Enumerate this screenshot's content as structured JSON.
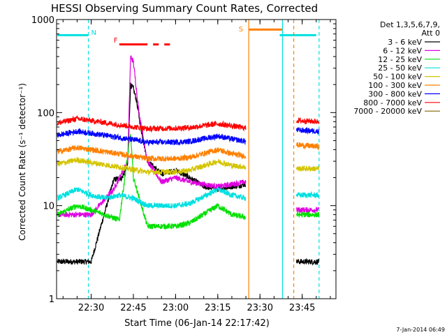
{
  "chart_data": {
    "type": "line",
    "title": "HESSI Observing Summary Count Rates, Corrected",
    "xlabel": "Start Time (06-Jan-14 22:17:42)",
    "ylabel": "Corrected Count Rate (s⁻¹ detector⁻¹)",
    "y_scale": "log",
    "ylim": [
      1,
      1000
    ],
    "xlim": [
      "22:17:42",
      "23:57:00"
    ],
    "x_ticks": [
      "22:30",
      "22:45",
      "23:00",
      "23:15",
      "23:30",
      "23:45"
    ],
    "y_ticks": [
      "1",
      "10",
      "100",
      "1000"
    ],
    "legend": {
      "position": "top-right",
      "header": [
        "Det 1,3,5,6,7,9,",
        "Att 0"
      ]
    },
    "series": [
      {
        "name": "3 - 6 keV",
        "color": "#000000",
        "points": [
          [
            "22:18",
            2.5
          ],
          [
            "22:25",
            2.5
          ],
          [
            "22:30",
            2.5
          ],
          [
            "22:38",
            19
          ],
          [
            "22:41",
            20
          ],
          [
            "22:43",
            28
          ],
          [
            "22:44",
            200
          ],
          [
            "22:45",
            180
          ],
          [
            "22:46",
            140
          ],
          [
            "22:48",
            60
          ],
          [
            "22:50",
            30
          ],
          [
            "22:55",
            22
          ],
          [
            "23:00",
            24
          ],
          [
            "23:05",
            20
          ],
          [
            "23:10",
            16
          ],
          [
            "23:15",
            15
          ],
          [
            "23:20",
            16
          ],
          [
            "23:25",
            17
          ],
          [
            "23:43",
            2.5
          ],
          [
            "23:51",
            2.5
          ]
        ]
      },
      {
        "name": "6 - 12 keV",
        "color": "#e000e0",
        "points": [
          [
            "22:18",
            8
          ],
          [
            "22:30",
            8
          ],
          [
            "22:38",
            15
          ],
          [
            "22:43",
            30
          ],
          [
            "22:44",
            400
          ],
          [
            "22:45",
            350
          ],
          [
            "22:47",
            100
          ],
          [
            "22:50",
            30
          ],
          [
            "22:55",
            18
          ],
          [
            "23:00",
            20
          ],
          [
            "23:05",
            18
          ],
          [
            "23:10",
            17
          ],
          [
            "23:15",
            16
          ],
          [
            "23:20",
            17
          ],
          [
            "23:25",
            18
          ],
          [
            "23:43",
            9
          ],
          [
            "23:51",
            9
          ]
        ]
      },
      {
        "name": "12 - 25 keV",
        "color": "#00e000",
        "points": [
          [
            "22:18",
            8
          ],
          [
            "22:25",
            10
          ],
          [
            "22:30",
            9
          ],
          [
            "22:35",
            8
          ],
          [
            "22:40",
            7
          ],
          [
            "22:44",
            60
          ],
          [
            "22:45",
            20
          ],
          [
            "22:50",
            6
          ],
          [
            "23:00",
            6
          ],
          [
            "23:05",
            6.5
          ],
          [
            "23:15",
            10
          ],
          [
            "23:20",
            8
          ],
          [
            "23:25",
            7.5
          ],
          [
            "23:43",
            8
          ],
          [
            "23:51",
            8
          ]
        ]
      },
      {
        "name": "25 - 50 keV",
        "color": "#00e0e0",
        "points": [
          [
            "22:18",
            12
          ],
          [
            "22:25",
            15
          ],
          [
            "22:30",
            13
          ],
          [
            "22:35",
            12
          ],
          [
            "22:40",
            13
          ],
          [
            "22:45",
            12
          ],
          [
            "22:50",
            10
          ],
          [
            "23:00",
            10
          ],
          [
            "23:05",
            10.5
          ],
          [
            "23:15",
            15
          ],
          [
            "23:20",
            13
          ],
          [
            "23:25",
            12
          ],
          [
            "23:43",
            13
          ],
          [
            "23:51",
            13
          ]
        ]
      },
      {
        "name": "50 - 100 keV",
        "color": "#d4c400",
        "points": [
          [
            "22:18",
            28
          ],
          [
            "22:25",
            31
          ],
          [
            "22:30",
            29
          ],
          [
            "22:40",
            26
          ],
          [
            "22:50",
            23
          ],
          [
            "23:00",
            23
          ],
          [
            "23:05",
            24
          ],
          [
            "23:15",
            30
          ],
          [
            "23:20",
            27
          ],
          [
            "23:25",
            26
          ],
          [
            "23:43",
            25
          ],
          [
            "23:51",
            25
          ]
        ]
      },
      {
        "name": "100 - 300 keV",
        "color": "#ff8000",
        "points": [
          [
            "22:18",
            38
          ],
          [
            "22:25",
            42
          ],
          [
            "22:30",
            40
          ],
          [
            "22:40",
            36
          ],
          [
            "22:50",
            32
          ],
          [
            "23:00",
            32
          ],
          [
            "23:05",
            33
          ],
          [
            "23:15",
            40
          ],
          [
            "23:20",
            36
          ],
          [
            "23:25",
            34
          ],
          [
            "23:43",
            45
          ],
          [
            "23:51",
            43
          ]
        ]
      },
      {
        "name": "300 - 800 keV",
        "color": "#0000ff",
        "points": [
          [
            "22:18",
            57
          ],
          [
            "22:25",
            63
          ],
          [
            "22:30",
            60
          ],
          [
            "22:40",
            54
          ],
          [
            "22:50",
            48
          ],
          [
            "23:00",
            48
          ],
          [
            "23:05",
            49
          ],
          [
            "23:15",
            56
          ],
          [
            "23:20",
            52
          ],
          [
            "23:25",
            49
          ],
          [
            "23:43",
            65
          ],
          [
            "23:51",
            63
          ]
        ]
      },
      {
        "name": "800 - 7000 keV",
        "color": "#ff0000",
        "points": [
          [
            "22:18",
            77
          ],
          [
            "22:25",
            86
          ],
          [
            "22:30",
            82
          ],
          [
            "22:40",
            74
          ],
          [
            "22:50",
            67
          ],
          [
            "23:00",
            68
          ],
          [
            "23:05",
            69
          ],
          [
            "23:15",
            76
          ],
          [
            "23:20",
            72
          ],
          [
            "23:25",
            68
          ],
          [
            "23:43",
            82
          ],
          [
            "23:51",
            80
          ]
        ]
      },
      {
        "name": "7000 - 20000 keV",
        "color": "#806000",
        "points": []
      }
    ],
    "annotations": [
      {
        "label": "N",
        "color": "#00e0e0"
      },
      {
        "label": "F",
        "color": "#ff0000"
      },
      {
        "label": "S",
        "color": "#ff8000"
      }
    ],
    "timestamp": "7-Jan-2014 06:49"
  }
}
